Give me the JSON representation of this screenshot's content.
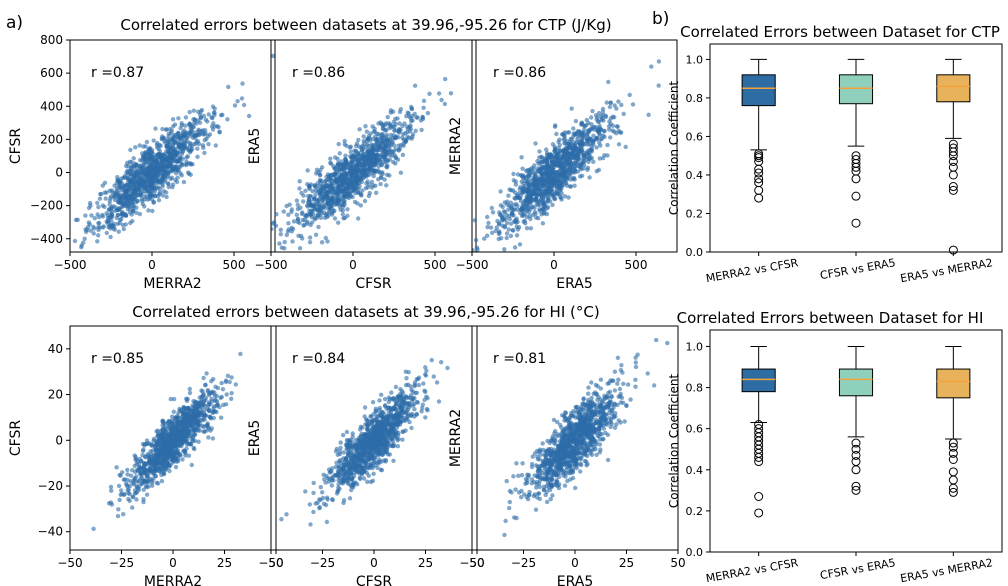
{
  "panel_labels": {
    "a": "a)",
    "b": "b)"
  },
  "colors": {
    "scatter": "#2d6da8",
    "box_merra2_cfsr": "#2e6ca4",
    "box_cfsr_era5": "#8fd0bd",
    "box_era5_merra2": "#e8b25c",
    "median": "#f4a33b"
  },
  "titles": {
    "ctp_scatter": "Correlated errors between datasets at 39.96,-95.26 for CTP (J/Kg)",
    "hi_scatter": "Correlated errors between datasets at 39.96,-95.26 for HI (°C)",
    "ctp_box": "Correlated Errors between Dataset for CTP",
    "hi_box": "Correlated Errors between Dataset for HI"
  },
  "chart_data": [
    {
      "type": "scatter",
      "id": "ctp-merra2-cfsr",
      "row": "ctp",
      "xlabel": "MERRA2",
      "ylabel": "CFSR",
      "annotation": "r =0.87",
      "xlim": [
        -500,
        750
      ],
      "ylim": [
        -480,
        800
      ],
      "xticks": [
        -500,
        0,
        500
      ],
      "yticks": [
        -400,
        -200,
        0,
        200,
        400,
        600,
        800
      ],
      "r": 0.87,
      "slope": 0.85,
      "noise": 85,
      "sigma": 160,
      "seed": 11,
      "n": 1100
    },
    {
      "type": "scatter",
      "id": "ctp-cfsr-era5",
      "row": "ctp",
      "xlabel": "CFSR",
      "ylabel": "ERA5",
      "annotation": "r =0.86",
      "xlim": [
        -500,
        750
      ],
      "ylim": [
        -480,
        800
      ],
      "xticks": [
        -500,
        0,
        500
      ],
      "yticks": [],
      "r": 0.86,
      "slope": 0.82,
      "noise": 85,
      "sigma": 160,
      "seed": 22,
      "n": 1100
    },
    {
      "type": "scatter",
      "id": "ctp-era5-merra2",
      "row": "ctp",
      "xlabel": "ERA5",
      "ylabel": "MERRA2",
      "annotation": "r =0.86",
      "xlim": [
        -500,
        750
      ],
      "ylim": [
        -480,
        800
      ],
      "xticks": [
        -500,
        0,
        500
      ],
      "yticks": [],
      "r": 0.86,
      "slope": 0.85,
      "noise": 88,
      "sigma": 160,
      "seed": 33,
      "n": 1100
    },
    {
      "type": "scatter",
      "id": "hi-merra2-cfsr",
      "row": "hi",
      "xlabel": "MERRA2",
      "ylabel": "CFSR",
      "annotation": "r =0.85",
      "xlim": [
        -50,
        50
      ],
      "ylim": [
        -48,
        50
      ],
      "xticks": [
        -50,
        -25,
        0,
        25,
        50
      ],
      "yticks": [
        -40,
        -20,
        0,
        20,
        40
      ],
      "r": 0.85,
      "slope": 0.88,
      "noise": 5.5,
      "sigma": 10,
      "seed": 44,
      "n": 1100
    },
    {
      "type": "scatter",
      "id": "hi-cfsr-era5",
      "row": "hi",
      "xlabel": "CFSR",
      "ylabel": "ERA5",
      "annotation": "r =0.84",
      "xlim": [
        -50,
        50
      ],
      "ylim": [
        -48,
        50
      ],
      "xticks": [
        -50,
        -25,
        0,
        25,
        50
      ],
      "yticks": [],
      "r": 0.84,
      "slope": 0.86,
      "noise": 5.8,
      "sigma": 10,
      "seed": 55,
      "n": 1100
    },
    {
      "type": "scatter",
      "id": "hi-era5-merra2",
      "row": "hi",
      "xlabel": "ERA5",
      "ylabel": "MERRA2",
      "annotation": "r =0.81",
      "xlim": [
        -50,
        50
      ],
      "ylim": [
        -48,
        50
      ],
      "xticks": [
        -50,
        -25,
        0,
        25,
        50
      ],
      "yticks": [],
      "r": 0.81,
      "slope": 0.84,
      "noise": 6.5,
      "sigma": 10,
      "seed": 66,
      "n": 1100
    },
    {
      "type": "box",
      "id": "ctp-box",
      "ylabel": "Correlation Coefficient",
      "categories": [
        "MERRA2 vs CFSR",
        "CFSR vs ERA5",
        "ERA5 vs MERRA2"
      ],
      "ylim": [
        0,
        1.08
      ],
      "yticks": [
        0.0,
        0.2,
        0.4,
        0.6,
        0.8,
        1.0
      ],
      "boxes": [
        {
          "q1": 0.76,
          "median": 0.85,
          "q3": 0.92,
          "whislo": 0.53,
          "whishi": 1.0,
          "fliers": [
            0.28,
            0.32,
            0.36,
            0.38,
            0.41,
            0.43,
            0.47,
            0.49,
            0.5,
            0.51
          ]
        },
        {
          "q1": 0.77,
          "median": 0.85,
          "q3": 0.92,
          "whislo": 0.55,
          "whishi": 1.0,
          "fliers": [
            0.15,
            0.29,
            0.38,
            0.42,
            0.44,
            0.46,
            0.48,
            0.5
          ]
        },
        {
          "q1": 0.78,
          "median": 0.86,
          "q3": 0.92,
          "whislo": 0.59,
          "whishi": 1.0,
          "fliers": [
            0.01,
            0.32,
            0.34,
            0.4,
            0.44,
            0.47,
            0.5,
            0.52,
            0.54,
            0.56
          ]
        }
      ]
    },
    {
      "type": "box",
      "id": "hi-box",
      "ylabel": "Correlation Coefficient",
      "categories": [
        "MERRA2 vs CFSR",
        "CFSR vs ERA5",
        "ERA5 vs MERRA2"
      ],
      "ylim": [
        0,
        1.08
      ],
      "yticks": [
        0.0,
        0.2,
        0.4,
        0.6,
        0.8,
        1.0
      ],
      "boxes": [
        {
          "q1": 0.78,
          "median": 0.84,
          "q3": 0.89,
          "whislo": 0.63,
          "whishi": 1.0,
          "fliers": [
            0.19,
            0.27,
            0.44,
            0.46,
            0.48,
            0.5,
            0.52,
            0.54,
            0.56,
            0.58,
            0.6,
            0.62
          ]
        },
        {
          "q1": 0.76,
          "median": 0.84,
          "q3": 0.89,
          "whislo": 0.56,
          "whishi": 1.0,
          "fliers": [
            0.3,
            0.32,
            0.4,
            0.44,
            0.47,
            0.5,
            0.53
          ]
        },
        {
          "q1": 0.75,
          "median": 0.83,
          "q3": 0.89,
          "whislo": 0.55,
          "whishi": 1.0,
          "fliers": [
            0.29,
            0.31,
            0.35,
            0.39,
            0.45,
            0.48,
            0.51,
            0.53
          ]
        }
      ]
    }
  ]
}
